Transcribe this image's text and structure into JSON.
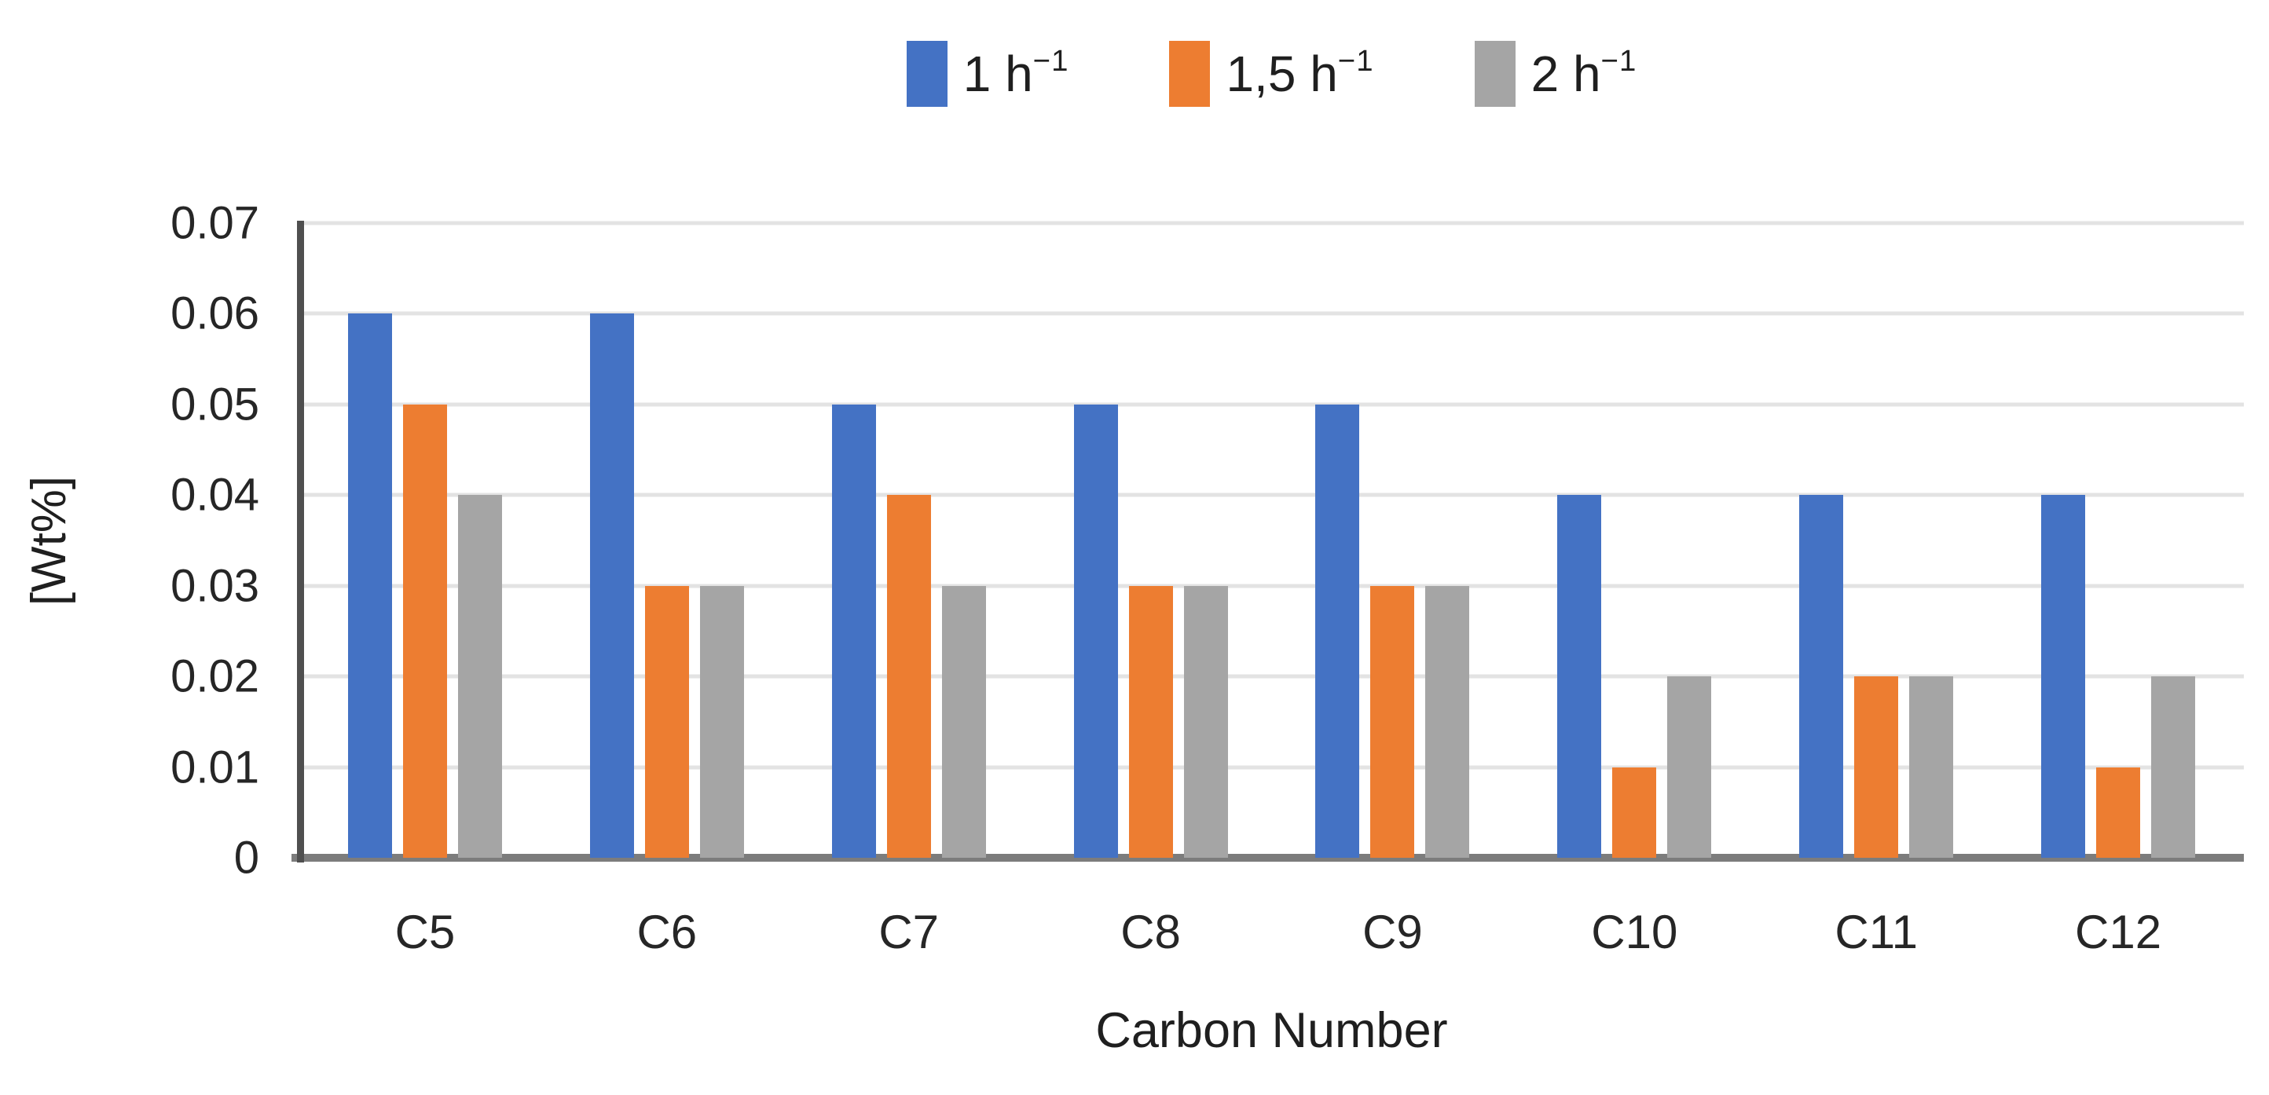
{
  "chart_data": {
    "type": "bar",
    "title": "",
    "xlabel": "Carbon Number",
    "ylabel": "[Wt%]",
    "categories": [
      "C5",
      "C6",
      "C7",
      "C8",
      "C9",
      "C10",
      "C11",
      "C12"
    ],
    "series": [
      {
        "name": "1 h⁻¹",
        "label_base": "1 h",
        "label_exp": "−1",
        "color": "#4472C4",
        "pattern": "solid",
        "values": [
          0.06,
          0.06,
          0.05,
          0.05,
          0.05,
          0.04,
          0.04,
          0.04
        ]
      },
      {
        "name": "1,5 h⁻¹",
        "label_base": "1,5 h",
        "label_exp": "−1",
        "color": "#ED7D31",
        "pattern": "solid",
        "values": [
          0.05,
          0.03,
          0.04,
          0.03,
          0.03,
          0.01,
          0.02,
          0.01
        ]
      },
      {
        "name": "2 h⁻¹",
        "label_base": "2 h",
        "label_exp": "−1",
        "color": "#A5A5A5",
        "pattern": "checker",
        "values": [
          0.04,
          0.03,
          0.03,
          0.03,
          0.03,
          0.02,
          0.02,
          0.02
        ]
      }
    ],
    "ylim": [
      0,
      0.07
    ],
    "ytick_step": 0.01,
    "yticks": [
      "0.07",
      "0.06",
      "0.05",
      "0.04",
      "0.03",
      "0.02",
      "0.01",
      "0"
    ],
    "grid": "horizontal",
    "legend_position": "top-center",
    "colors": {
      "gridline": "#e3e3e3",
      "y_axis_line": "#4f4f4f",
      "x_axis_line": "#7c7c7c",
      "text": "#1f1f1f",
      "background": "#ffffff"
    }
  }
}
